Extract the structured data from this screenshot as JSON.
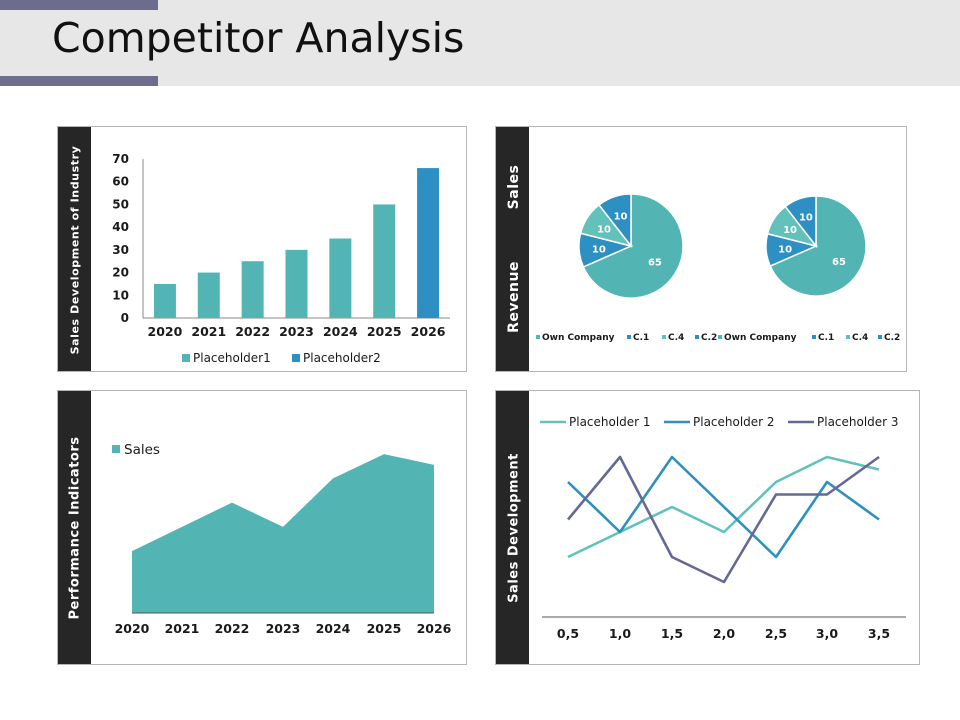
{
  "page": {
    "title": "Competitor Analysis"
  },
  "colors": {
    "teal": "#52b5b3",
    "blue": "#2e8fc2",
    "lightTeal": "#62c1bb",
    "slate": "#656895",
    "dark": "#262626",
    "band": "#e7e7e7"
  },
  "panels": {
    "bar": {
      "side_label": "Sales Development of Industry"
    },
    "pie": {
      "side_label_top": "Sales",
      "side_label_bottom": "Revenue"
    },
    "area": {
      "side_label": "Performance Indicators"
    },
    "line": {
      "side_label": "Sales Development"
    }
  },
  "chart_data": [
    {
      "type": "bar",
      "categories": [
        "2020",
        "2021",
        "2022",
        "2023",
        "2024",
        "2025",
        "2026"
      ],
      "series": [
        {
          "name": "Placeholder1",
          "values": [
            15,
            20,
            25,
            30,
            35,
            50,
            0
          ]
        },
        {
          "name": "Placeholder2",
          "values": [
            0,
            0,
            0,
            0,
            0,
            0,
            66
          ]
        }
      ],
      "ylim": [
        0,
        70
      ],
      "yticks": [
        0,
        10,
        20,
        30,
        40,
        50,
        60,
        70
      ],
      "legend": "bottom"
    },
    {
      "type": "pie",
      "slices": [
        {
          "label": "Own Company",
          "value": 65
        },
        {
          "label": "C.1",
          "value": 10
        },
        {
          "label": "C.4",
          "value": 10
        },
        {
          "label": "C.2",
          "value": 10
        }
      ],
      "legend": "bottom"
    },
    {
      "type": "pie",
      "slices": [
        {
          "label": "Own Company",
          "value": 65
        },
        {
          "label": "C.1",
          "value": 10
        },
        {
          "label": "C.4",
          "value": 10
        },
        {
          "label": "C.2",
          "value": 10
        }
      ],
      "legend": "bottom"
    },
    {
      "type": "area",
      "categories": [
        "2020",
        "2021",
        "2022",
        "2023",
        "2024",
        "2025",
        "2026"
      ],
      "series": [
        {
          "name": "Sales",
          "values": [
            23,
            32,
            41,
            32,
            50,
            59,
            55
          ]
        }
      ],
      "ylim": [
        0,
        65
      ],
      "legend": "top-left"
    },
    {
      "type": "line",
      "categories": [
        "0,5",
        "1,0",
        "1,5",
        "2,0",
        "2,5",
        "3,0",
        "3,5"
      ],
      "series": [
        {
          "name": "Placeholder 1",
          "values": [
            2.4,
            3.4,
            4.4,
            3.4,
            5.4,
            6.4,
            5.9
          ]
        },
        {
          "name": "Placeholder 2",
          "values": [
            5.4,
            3.4,
            6.4,
            4.4,
            2.4,
            5.4,
            3.9
          ]
        },
        {
          "name": "Placeholder 3",
          "values": [
            3.9,
            6.4,
            2.4,
            1.4,
            4.9,
            4.9,
            6.4
          ]
        }
      ],
      "ylim": [
        0,
        8
      ],
      "legend": "top"
    }
  ]
}
